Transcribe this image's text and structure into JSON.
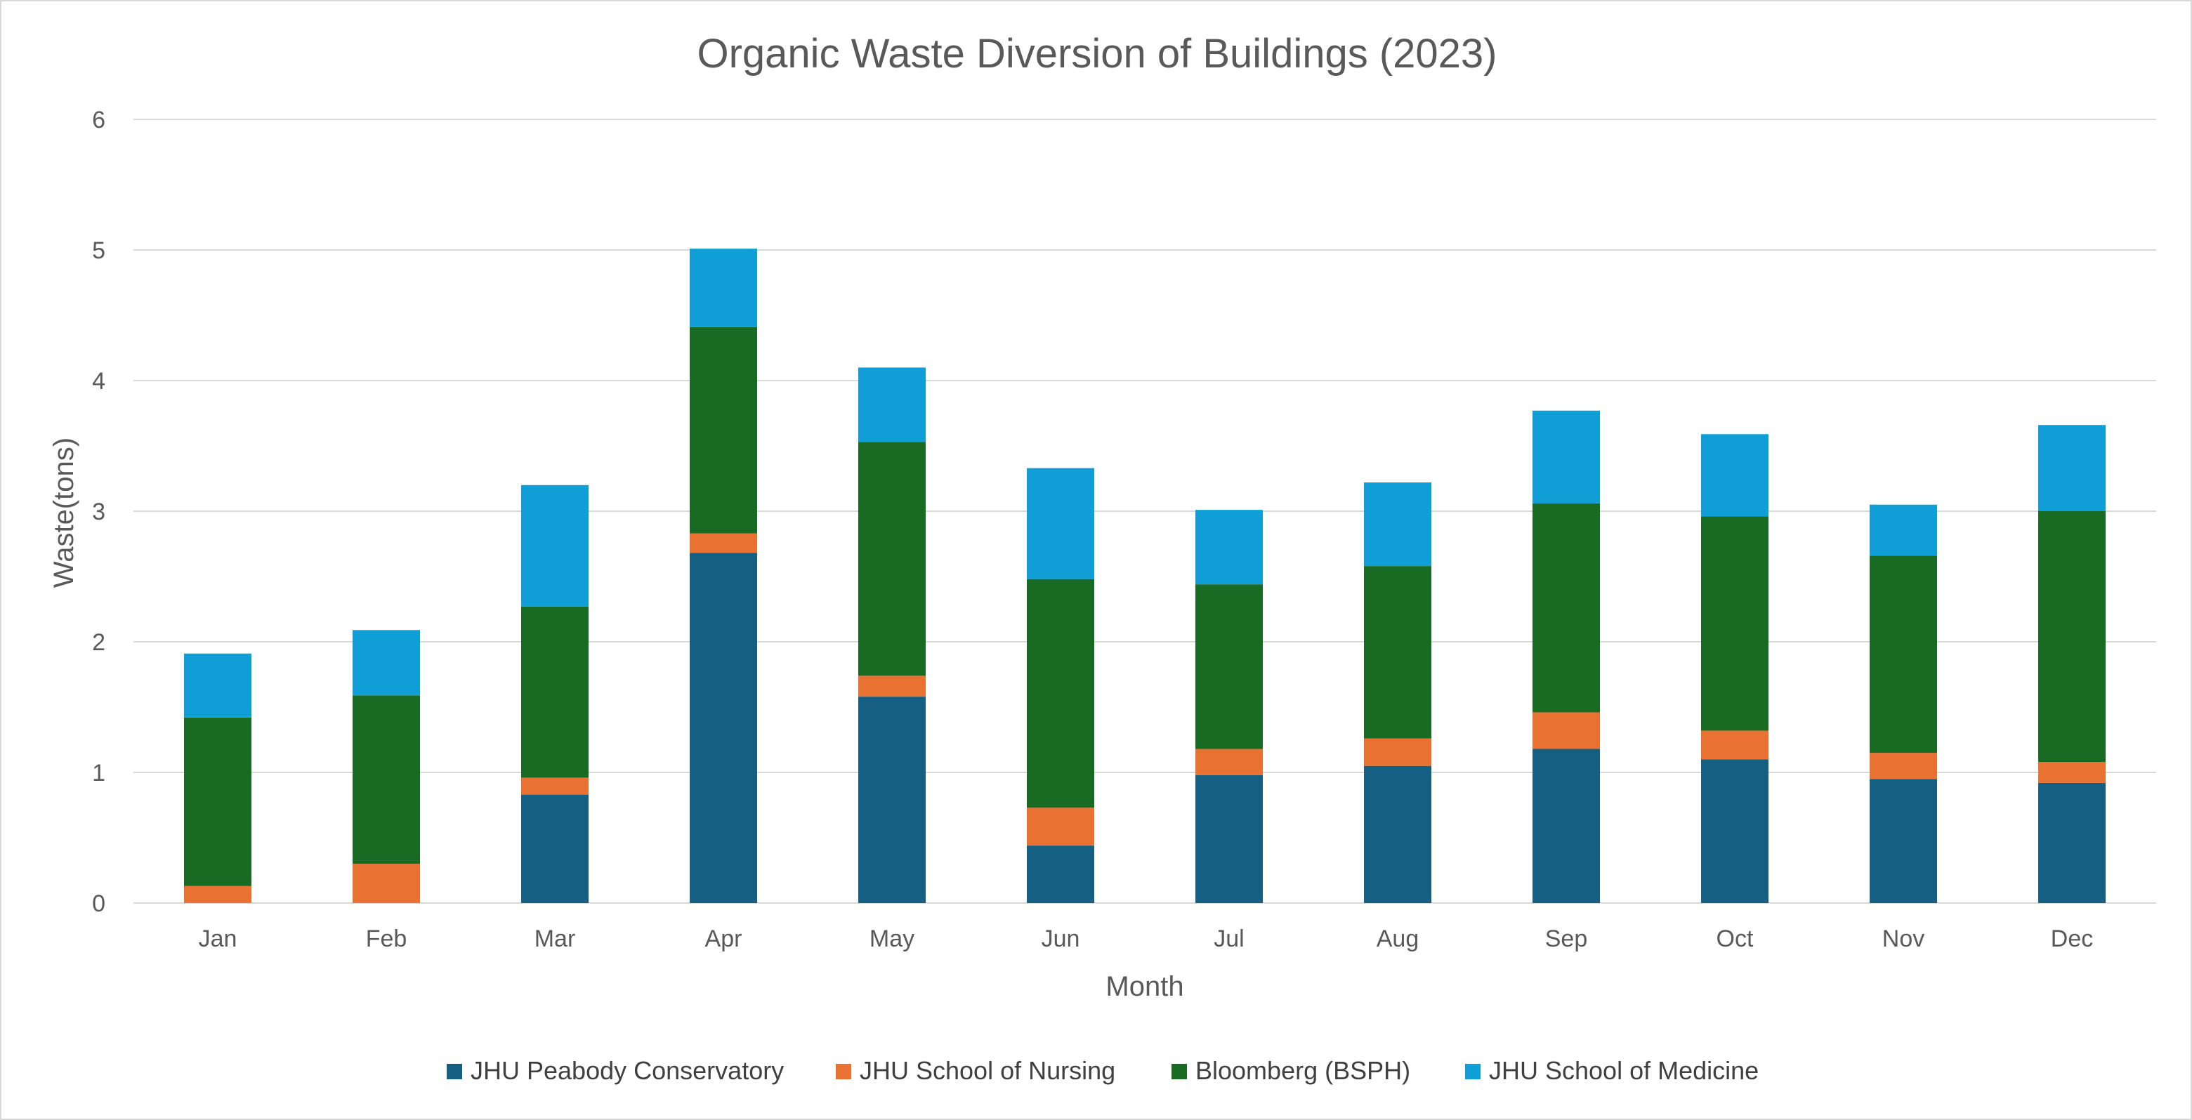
{
  "chart_data": {
    "type": "bar",
    "stacked": true,
    "title": "Organic Waste Diversion of Buildings (2023)",
    "xlabel": "Month",
    "ylabel": "Waste(tons)",
    "ylim": [
      0,
      6
    ],
    "yticks": [
      "0",
      "1",
      "2",
      "3",
      "4",
      "5",
      "6"
    ],
    "grid": true,
    "legend_position": "bottom",
    "categories": [
      "Jan",
      "Feb",
      "Mar",
      "Apr",
      "May",
      "Jun",
      "Jul",
      "Aug",
      "Sep",
      "Oct",
      "Nov",
      "Dec"
    ],
    "series": [
      {
        "name": "JHU Peabody Conservatory",
        "color": "#156082",
        "values": [
          0,
          0,
          0.83,
          2.68,
          1.58,
          0.44,
          0.98,
          1.05,
          1.18,
          1.1,
          0.95,
          0.92
        ]
      },
      {
        "name": "JHU School of Nursing",
        "color": "#E97132",
        "values": [
          0.13,
          0.3,
          0.13,
          0.15,
          0.16,
          0.29,
          0.2,
          0.21,
          0.28,
          0.22,
          0.2,
          0.16
        ]
      },
      {
        "name": "Bloomberg (BSPH)",
        "color": "#196B24",
        "values": [
          1.29,
          1.29,
          1.31,
          1.58,
          1.79,
          1.75,
          1.26,
          1.32,
          1.6,
          1.64,
          1.51,
          1.92
        ]
      },
      {
        "name": "JHU School of Medicine",
        "color": "#0F9ED5",
        "values": [
          0.49,
          0.5,
          0.93,
          0.6,
          0.57,
          0.85,
          0.57,
          0.64,
          0.71,
          0.63,
          0.39,
          0.66
        ]
      }
    ]
  }
}
